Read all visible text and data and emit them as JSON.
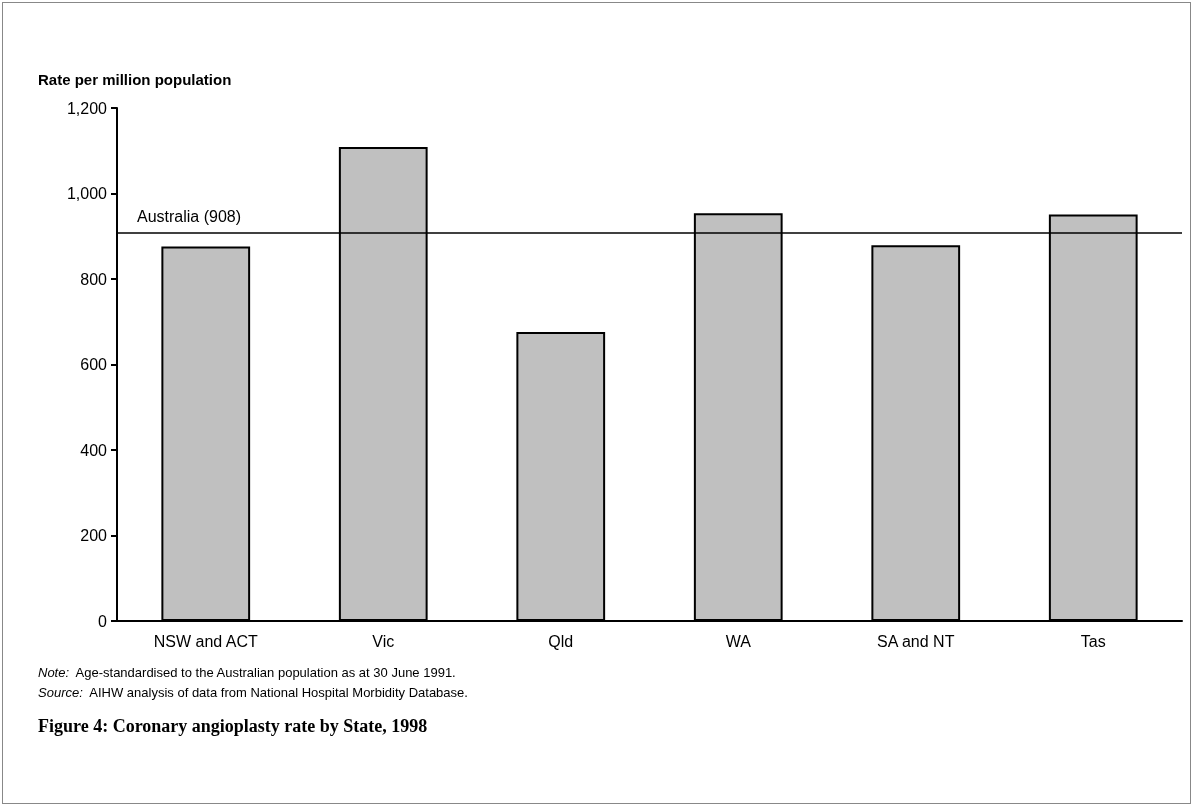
{
  "chart_data": {
    "type": "bar",
    "title": "Figure 4: Coronary angioplasty rate by State, 1998",
    "ylabel": "Rate per million population",
    "categories": [
      "NSW and ACT",
      "Vic",
      "Qld",
      "WA",
      "SA and NT",
      "Tas"
    ],
    "values": [
      876,
      1109,
      676,
      954,
      879,
      951
    ],
    "color": "#c0c0c0",
    "ylim": [
      0,
      1200
    ],
    "yticks": [
      0,
      {
        "value": 200,
        "label": "200"
      },
      {
        "value": 400,
        "label": "400"
      },
      {
        "value": 600,
        "label": "600"
      },
      {
        "value": 800,
        "label": "800"
      },
      {
        "value": 1000,
        "label": "1,000"
      },
      {
        "value": 1200,
        "label": "1,200"
      }
    ],
    "ref_lines": [
      {
        "axis": "y",
        "value": 908,
        "label": "Australia (908)",
        "color": "#000000"
      }
    ],
    "annotations": [
      "Note:  Age-standardised to the Australian population as at 30 June 1991.",
      "Source:  AIHW analysis of data from National Hospital Morbidity Database."
    ],
    "grid": false
  }
}
